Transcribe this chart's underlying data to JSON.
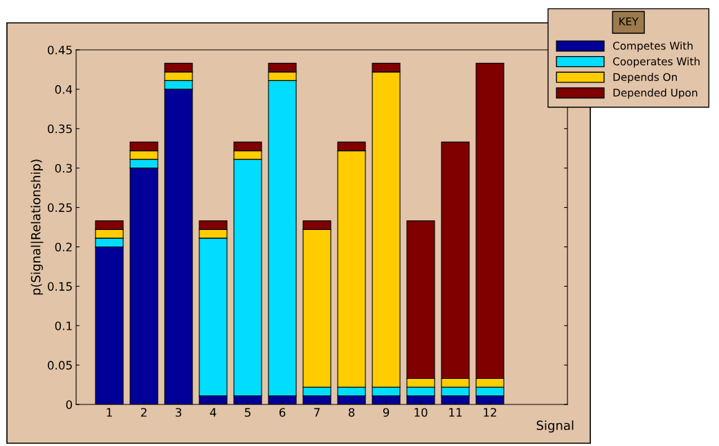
{
  "chart_data": {
    "type": "bar",
    "stacked": true,
    "xlabel": "Signal",
    "ylabel": "p(Signal|Relationship)",
    "legend_title": "KEY",
    "legend": "top right",
    "categories": [
      "1",
      "2",
      "3",
      "4",
      "5",
      "6",
      "7",
      "8",
      "9",
      "10",
      "11",
      "12"
    ],
    "series": [
      {
        "name": "Competes With",
        "color": "#000099",
        "values": [
          0.2,
          0.3,
          0.4,
          0.011,
          0.011,
          0.011,
          0.011,
          0.011,
          0.011,
          0.011,
          0.011,
          0.011
        ]
      },
      {
        "name": "Cooperates With",
        "color": "#00ddff",
        "values": [
          0.011,
          0.011,
          0.011,
          0.2,
          0.3,
          0.4,
          0.011,
          0.011,
          0.011,
          0.011,
          0.011,
          0.011
        ]
      },
      {
        "name": "Depends On",
        "color": "#ffcc00",
        "values": [
          0.011,
          0.011,
          0.011,
          0.011,
          0.011,
          0.011,
          0.2,
          0.3,
          0.4,
          0.011,
          0.011,
          0.011
        ]
      },
      {
        "name": "Depended Upon",
        "color": "#800000",
        "values": [
          0.011,
          0.011,
          0.011,
          0.011,
          0.011,
          0.011,
          0.011,
          0.011,
          0.011,
          0.2,
          0.3,
          0.4
        ]
      }
    ],
    "ylim": [
      0,
      0.45
    ],
    "yticks": [
      0,
      0.05,
      0.1,
      0.15,
      0.2,
      0.25,
      0.3,
      0.35,
      0.4,
      0.45
    ],
    "grid": false
  }
}
